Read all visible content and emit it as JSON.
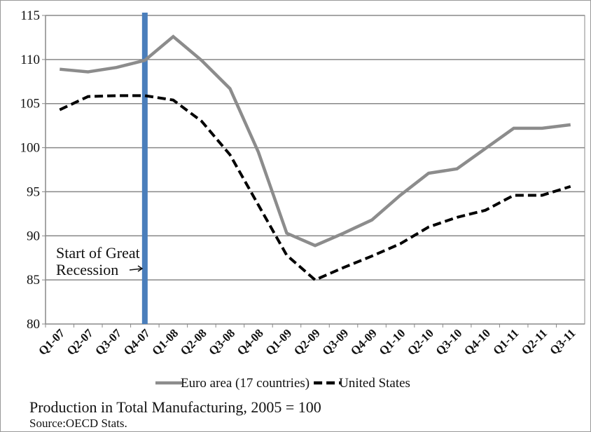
{
  "chart_data": {
    "type": "line",
    "title": "Production in Total Manufacturing, 2005 = 100",
    "source": "Source:OECD Stats.",
    "annotation": "Start of Great\nRecession",
    "marker_category": "Q4-07",
    "marker_color": "#4a7ebb",
    "categories": [
      "Q1-07",
      "Q2-07",
      "Q3-07",
      "Q4-07",
      "Q1-08",
      "Q2-08",
      "Q3-08",
      "Q4-08",
      "Q1-09",
      "Q2-09",
      "Q3-09",
      "Q4-09",
      "Q1-10",
      "Q2-10",
      "Q3-10",
      "Q4-10",
      "Q1-11",
      "Q2-11",
      "Q3-11"
    ],
    "series": [
      {
        "name": "Euro area (17 countries)",
        "color": "#8c8c8c",
        "dash": false,
        "values": [
          108.9,
          108.6,
          109.1,
          109.9,
          112.6,
          109.9,
          106.7,
          99.5,
          90.3,
          88.9,
          90.3,
          91.8,
          94.6,
          97.1,
          97.6,
          99.9,
          102.2,
          102.2,
          102.6
        ]
      },
      {
        "name": "United States",
        "color": "#000000",
        "dash": true,
        "values": [
          104.3,
          105.8,
          105.9,
          105.9,
          105.4,
          103.0,
          99.2,
          93.5,
          87.8,
          85.0,
          86.4,
          87.7,
          89.1,
          91.0,
          92.1,
          92.9,
          94.6,
          94.6,
          95.6
        ]
      }
    ],
    "ylim": [
      80,
      115
    ],
    "yticks": [
      80,
      85,
      90,
      95,
      100,
      105,
      110,
      115
    ],
    "grid": true
  }
}
